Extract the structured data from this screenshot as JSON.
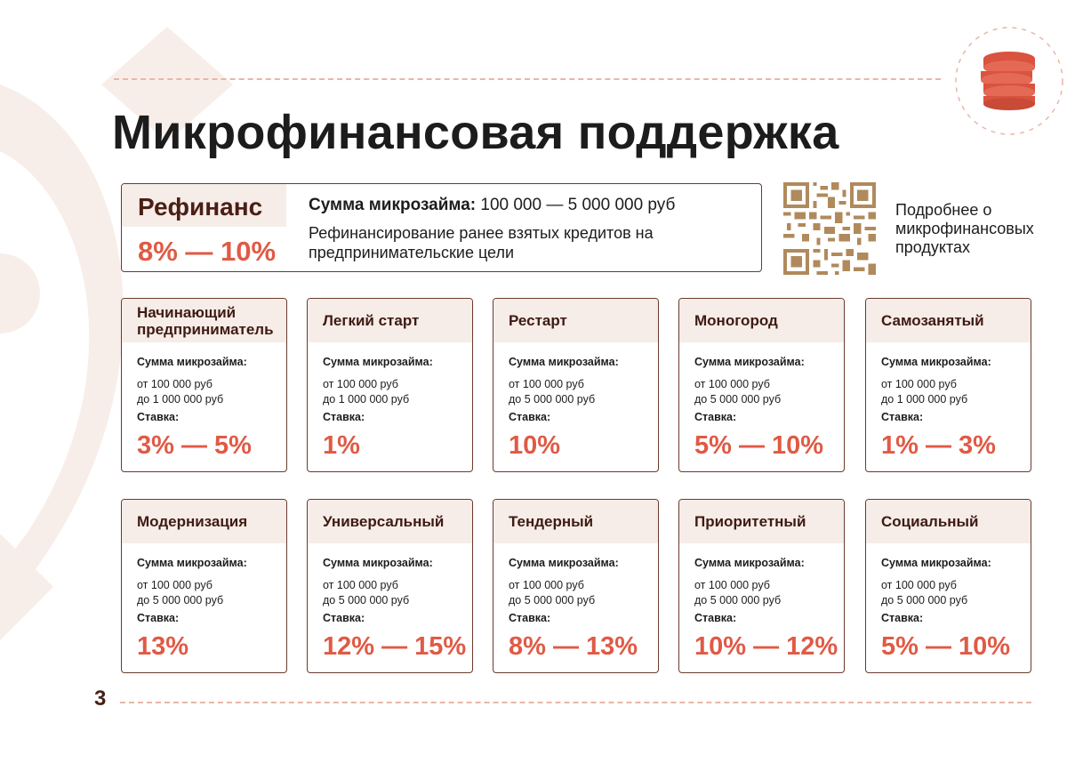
{
  "page": {
    "title": "Микрофинансовая поддержка",
    "page_number": "3",
    "accent_color": "#e05a45",
    "border_color": "#6b3a2e",
    "header_fill": "#f6ece8",
    "icon": "coin-stack-icon"
  },
  "featured": {
    "name": "Рефинанс",
    "rate": "8% — 10%",
    "amount_label": "Сумма микрозайма:",
    "amount_value": "100 000 — 5 000 000 руб",
    "description": "Рефинансирование ранее взятых кредитов на предпринимательские цели"
  },
  "qr": {
    "caption": "Подробнее о микрофинансовых продуктах"
  },
  "labels": {
    "amount": "Сумма микрозайма:",
    "rate": "Ставка:"
  },
  "products": [
    {
      "name": "Начинающий предприниматель",
      "from": "от 100 000 руб",
      "to": "до 1 000 000 руб",
      "rate": "3%  —  5%"
    },
    {
      "name": "Легкий старт",
      "from": "от 100 000 руб",
      "to": "до 1 000 000 руб",
      "rate": "1%"
    },
    {
      "name": "Рестарт",
      "from": "от 100 000 руб",
      "to": "до 5 000 000 руб",
      "rate": "10%"
    },
    {
      "name": "Моногород",
      "from": "от 100 000 руб",
      "to": "до 5 000 000 руб",
      "rate": "5% — 10%"
    },
    {
      "name": "Самозанятый",
      "from": "от 100 000 руб",
      "to": "до 1 000 000 руб",
      "rate": "1%  —  3%"
    },
    {
      "name": "Модернизация",
      "from": "от 100 000 руб",
      "to": "до 5 000 000 руб",
      "rate": "13%"
    },
    {
      "name": "Универсальный",
      "from": "от 100 000 руб",
      "to": "до 5 000 000 руб",
      "rate": "12% — 15%"
    },
    {
      "name": "Тендерный",
      "from": "от 100 000 руб",
      "to": "до 5 000 000 руб",
      "rate": "8%  —  13%"
    },
    {
      "name": "Приоритетный",
      "from": "от 100 000 руб",
      "to": "до 5 000 000 руб",
      "rate": "10% — 12%"
    },
    {
      "name": "Социальный",
      "from": "от 100 000 руб",
      "to": "до 5 000 000 руб",
      "rate": "5%  —  10%"
    }
  ]
}
